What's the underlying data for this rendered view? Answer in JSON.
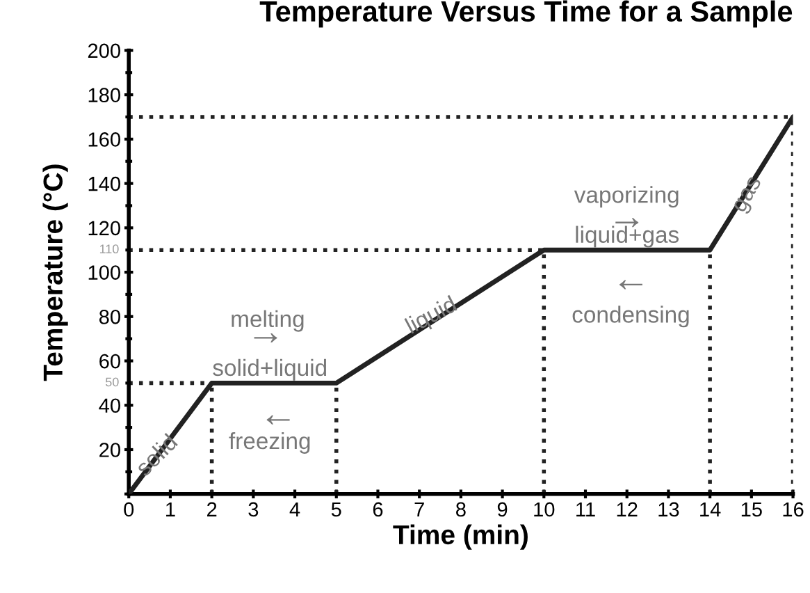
{
  "chart_data": {
    "type": "line",
    "title": "Temperature Versus Time for a Sample",
    "xlabel": "Time (min)",
    "ylabel": "Temperature (°C)",
    "x": [
      0,
      2,
      5,
      10,
      14,
      16
    ],
    "series": [
      {
        "color": "#222222",
        "values": [
          0,
          50,
          50,
          110,
          110,
          170
        ]
      }
    ],
    "xlim": [
      0,
      16
    ],
    "ylim": [
      0,
      200
    ],
    "xticks": [
      0,
      1,
      2,
      3,
      4,
      5,
      6,
      7,
      8,
      9,
      10,
      11,
      12,
      13,
      14,
      15,
      16
    ],
    "yticks": [
      {
        "value": 0,
        "label": null
      },
      20,
      40,
      60,
      80,
      100,
      120,
      140,
      160,
      180,
      200
    ],
    "ref_lines": [
      {
        "axis": "y",
        "value": 50,
        "label": "50",
        "line_style": "dotted",
        "color": "#222222"
      },
      {
        "axis": "y",
        "value": 110,
        "label": "110",
        "line_style": "dotted",
        "color": "#222222"
      },
      {
        "axis": "y",
        "value": 170,
        "line_style": "dotted",
        "color": "#222222"
      },
      {
        "axis": "x",
        "value": 2,
        "line_style": "dotted",
        "color": "#222222"
      },
      {
        "axis": "x",
        "value": 5,
        "line_style": "dotted",
        "color": "#222222"
      },
      {
        "axis": "x",
        "value": 10,
        "line_style": "dotted",
        "color": "#222222"
      },
      {
        "axis": "x",
        "value": 14,
        "line_style": "dotted",
        "color": "#222222"
      },
      {
        "axis": "x",
        "value": 16,
        "line_style": "dotted",
        "color": "#222222"
      }
    ],
    "annotations": [
      {
        "text": "solid",
        "x": 0.7,
        "y": 17
      },
      "solid+liquid",
      "melting",
      "→",
      "←",
      "freezing",
      {
        "text": "liquid",
        "x": 7.3,
        "y": 80
      },
      "vaporizing",
      "→",
      "liquid+gas",
      "←",
      "condensing",
      {
        "text": "gas",
        "x": 14.9,
        "y": 135
      }
    ],
    "grid": false,
    "marker": "none",
    "line_style": "solid"
  }
}
